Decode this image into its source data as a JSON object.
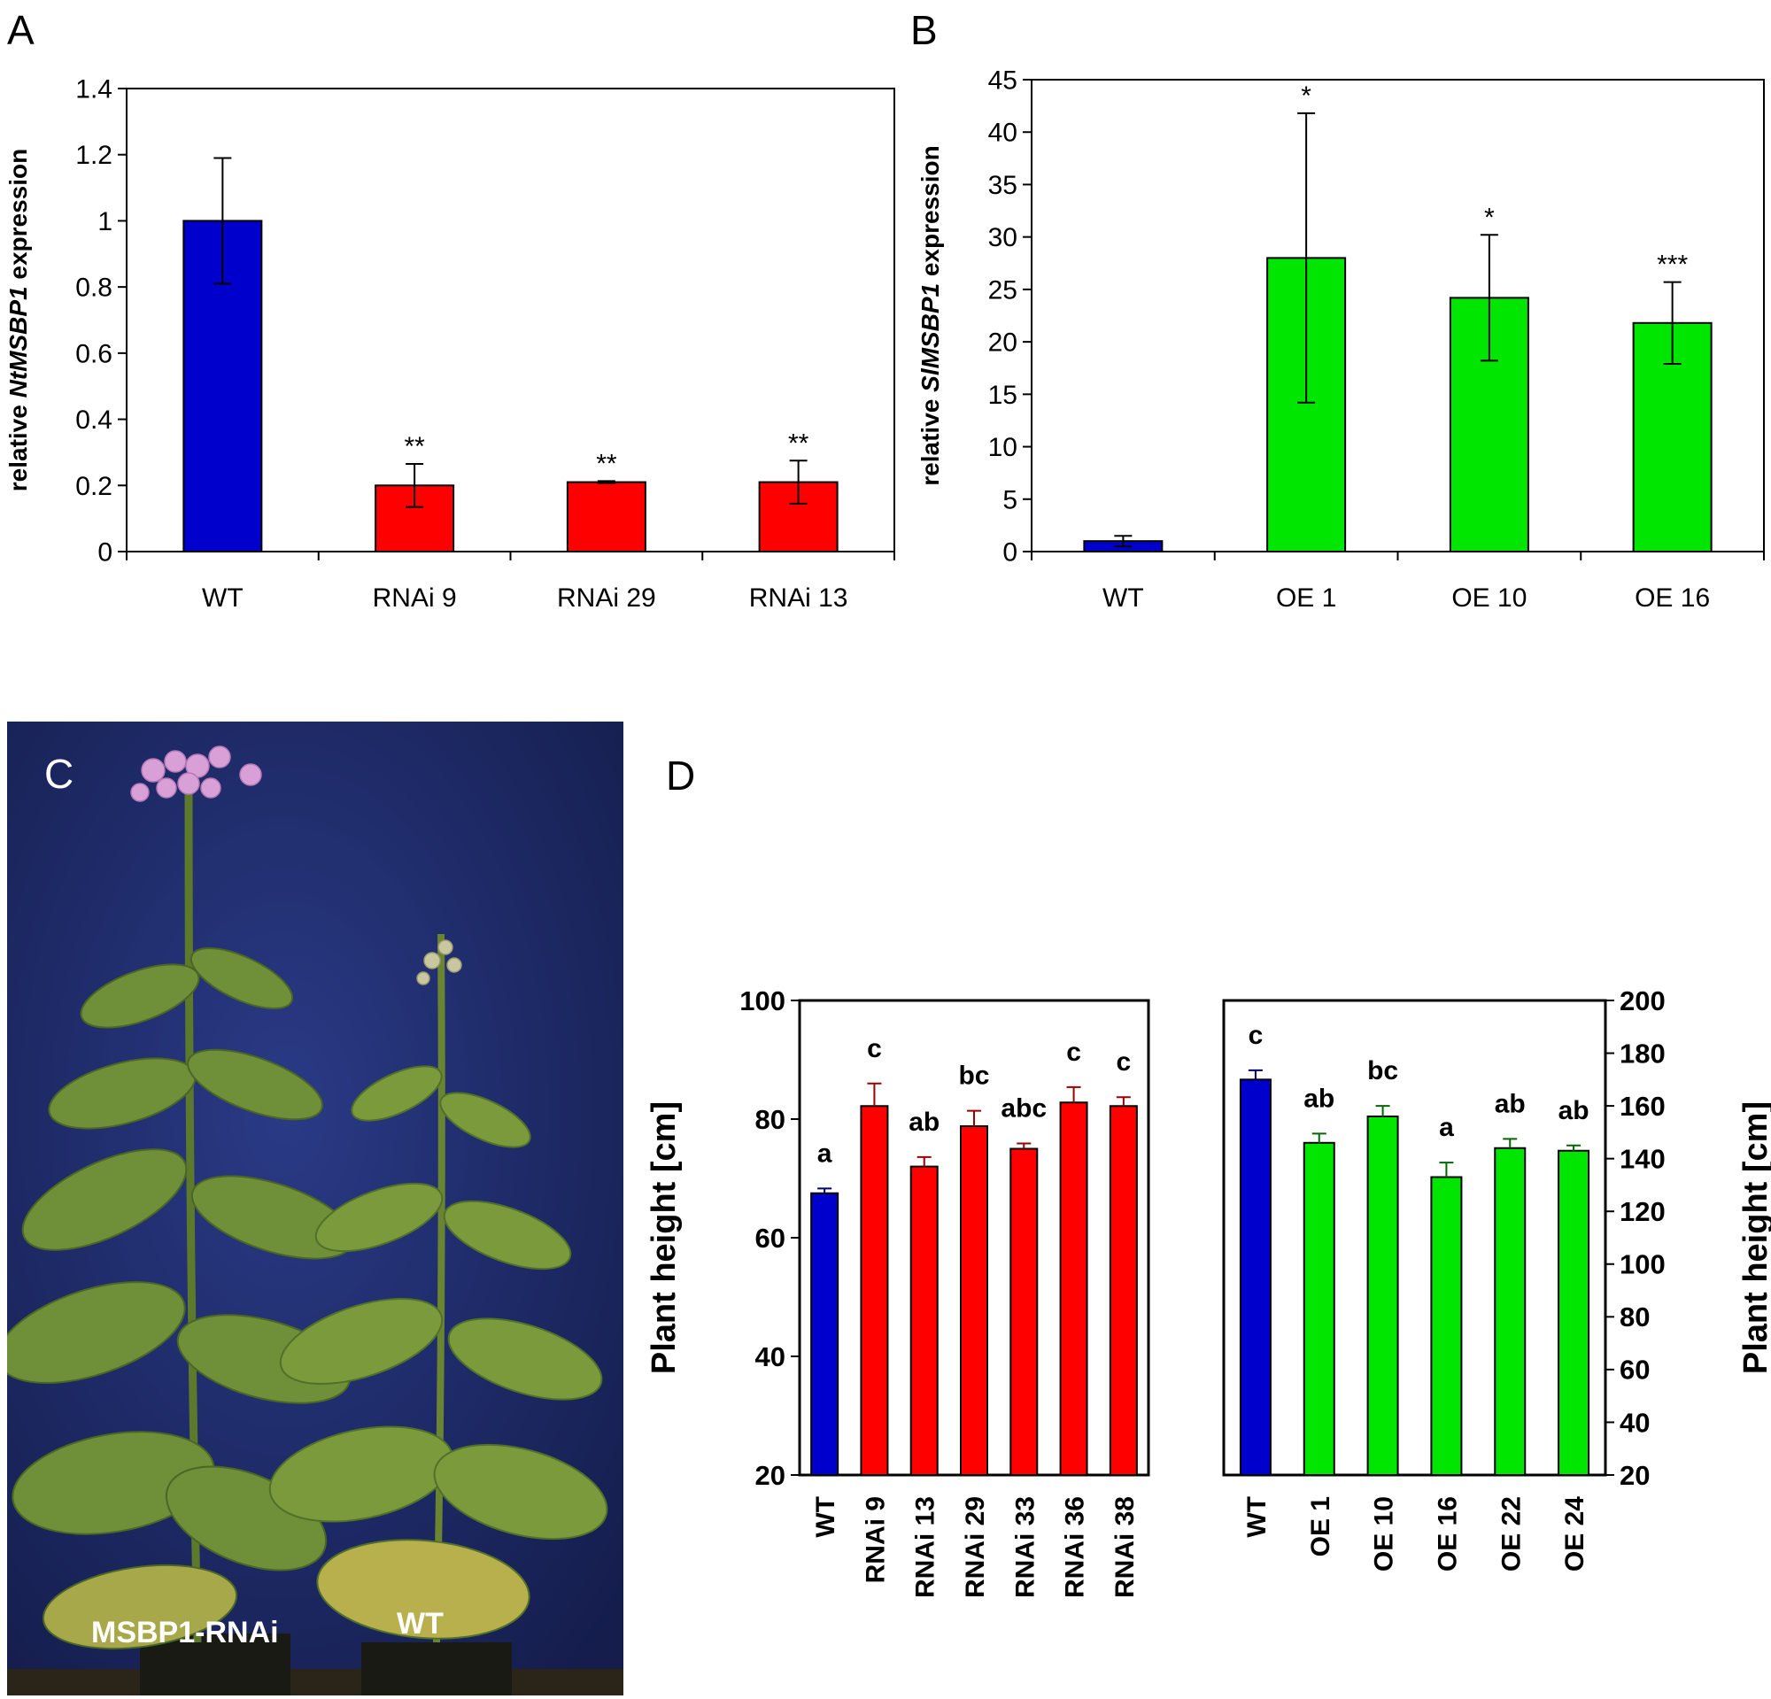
{
  "panels": {
    "A": {
      "letter": "A"
    },
    "B": {
      "letter": "B"
    },
    "C": {
      "letter": "C",
      "labels": {
        "rnai": "MSBP1-RNAi",
        "wt": "WT"
      }
    },
    "D": {
      "letter": "D"
    }
  },
  "colors": {
    "wt": "#0000cc",
    "rnai": "#ff0000",
    "oe": "#00e600",
    "photo_bg": "#1d2a66"
  },
  "chart_data": [
    {
      "id": "A",
      "type": "bar",
      "ylabel_prefix": "relative ",
      "ylabel_gene": "NtMSBP1",
      "ylabel_suffix": " expression",
      "ylim": [
        0,
        1.4
      ],
      "yticks": [
        "0",
        "0.2",
        "0.4",
        "0.6",
        "0.8",
        "1",
        "1.2",
        "1.4"
      ],
      "categories": [
        "WT",
        "RNAi 9",
        "RNAi 29",
        "RNAi 13"
      ],
      "values": [
        1.0,
        0.2,
        0.21,
        0.21
      ],
      "errors": [
        0.19,
        0.065,
        0.003,
        0.065
      ],
      "annotations": [
        "",
        "**",
        "**",
        "**"
      ],
      "bar_colors": [
        "wt",
        "rnai",
        "rnai",
        "rnai"
      ]
    },
    {
      "id": "B",
      "type": "bar",
      "ylabel_prefix": "relative ",
      "ylabel_gene": "SlMSBP1",
      "ylabel_suffix": " expression",
      "ylim": [
        0,
        45
      ],
      "yticks": [
        "0",
        "5",
        "10",
        "15",
        "20",
        "25",
        "30",
        "35",
        "40",
        "45"
      ],
      "categories": [
        "WT",
        "OE 1",
        "OE 10",
        "OE 16"
      ],
      "values": [
        1.0,
        28.0,
        24.2,
        21.8
      ],
      "errors": [
        0.5,
        13.8,
        6.0,
        3.9
      ],
      "annotations": [
        "",
        "*",
        "*",
        "***"
      ],
      "bar_colors": [
        "wt",
        "oe",
        "oe",
        "oe"
      ]
    },
    {
      "id": "D1",
      "type": "bar",
      "ylabel": "Plant height [cm]",
      "ylim": [
        20,
        100
      ],
      "yticks": [
        "20",
        "40",
        "60",
        "80",
        "100"
      ],
      "categories": [
        "WT",
        "RNAi 9",
        "RNAi 13",
        "RNAi 29",
        "RNAi 33",
        "RNAi 36",
        "RNAi 38"
      ],
      "values": [
        67.5,
        82.2,
        72.0,
        78.8,
        75.0,
        82.8,
        82.2
      ],
      "errors": [
        0.8,
        3.8,
        1.6,
        2.6,
        0.9,
        2.6,
        1.5
      ],
      "annotations": [
        "a",
        "c",
        "ab",
        "bc",
        "abc",
        "c",
        "c"
      ],
      "bar_colors": [
        "wt",
        "rnai",
        "rnai",
        "rnai",
        "rnai",
        "rnai",
        "rnai"
      ]
    },
    {
      "id": "D2",
      "type": "bar",
      "ylabel": "Plant height [cm]",
      "ylim": [
        20,
        200
      ],
      "yticks": [
        "20",
        "40",
        "60",
        "80",
        "100",
        "120",
        "140",
        "160",
        "180",
        "200"
      ],
      "categories": [
        "WT",
        "OE 1",
        "OE 10",
        "OE 16",
        "OE 22",
        "OE 24"
      ],
      "values": [
        170,
        146,
        156,
        133,
        144,
        143
      ],
      "errors": [
        3.5,
        3.5,
        4.0,
        5.5,
        3.5,
        2.0
      ],
      "annotations": [
        "c",
        "ab",
        "bc",
        "a",
        "ab",
        "ab"
      ],
      "bar_colors": [
        "wt",
        "oe",
        "oe",
        "oe",
        "oe",
        "oe"
      ]
    }
  ]
}
